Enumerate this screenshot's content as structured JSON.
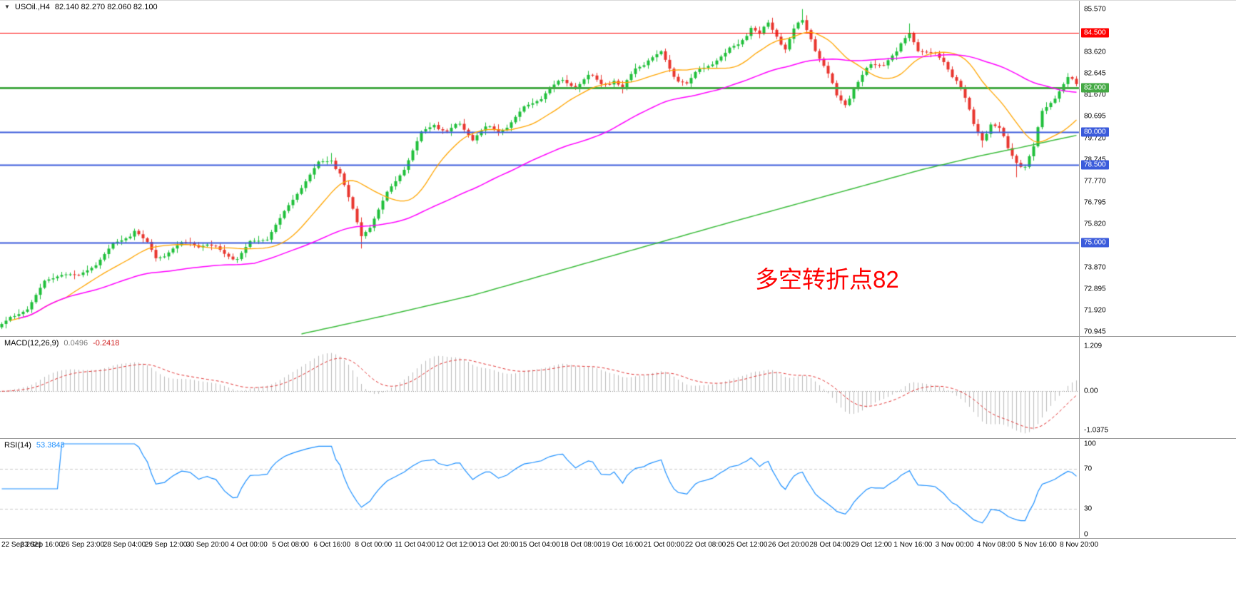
{
  "window": {
    "bg": "#ffffff"
  },
  "colors": {
    "up": "#1fbf3a",
    "down": "#e8352e",
    "ma_fast": "#ffa500",
    "ma_mid": "#ff00ff",
    "ma_slow": "#3cbc3c",
    "hist": "#bbbbbb",
    "macd_signal": "#e03030",
    "rsi_line": "#1E90FF",
    "level_dash": "#c8c8c8"
  },
  "main_chart": {
    "dropdown_icon": "▼",
    "title": "USOil.,H4",
    "ohlc": "82.140 82.270 82.060 82.100",
    "annotation": "多空转折点82",
    "price_axis": {
      "ticks": [
        "85.570",
        "83.620",
        "82.645",
        "81.670",
        "80.695",
        "79.720",
        "78.745",
        "77.770",
        "76.795",
        "75.820",
        "74.845",
        "73.870",
        "72.895",
        "71.920",
        "70.945"
      ]
    },
    "hlines": [
      {
        "price": 84.5,
        "label": "84.500",
        "color": "#ff0000",
        "width": 1
      },
      {
        "price": 82.0,
        "label": "82.000",
        "color": "#44a944",
        "width": 3
      },
      {
        "price": 80.0,
        "label": "80.000",
        "color": "#3b5bdb",
        "width": 2
      },
      {
        "price": 78.5,
        "label": "78.500",
        "color": "#3b5bdb",
        "width": 2
      },
      {
        "price": 75.0,
        "label": "75.000",
        "color": "#3b5bdb",
        "width": 2
      }
    ]
  },
  "macd": {
    "label": "MACD(12,26,9)",
    "value_main": "0.0496",
    "value_signal": "-0.2418",
    "axis_ticks": [
      {
        "v": 1.209,
        "t": "1.209"
      },
      {
        "v": 0,
        "t": "0.00"
      },
      {
        "v": -1.0375,
        "t": "-1.0375"
      }
    ]
  },
  "rsi": {
    "label": "RSI(14)",
    "value": "53.3843",
    "axis_ticks": [
      {
        "v": 100,
        "t": "100"
      },
      {
        "v": 70,
        "t": "70"
      },
      {
        "v": 30,
        "t": "30"
      },
      {
        "v": 0,
        "t": "0"
      }
    ]
  },
  "time_axis": {
    "labels": [
      "22 Sep 2021",
      "23 Sep 16:00",
      "26 Sep 23:00",
      "28 Sep 04:00",
      "29 Sep 12:00",
      "30 Sep 20:00",
      "4 Oct 00:00",
      "5 Oct 08:00",
      "6 Oct 16:00",
      "8 Oct 00:00",
      "11 Oct 04:00",
      "12 Oct 12:00",
      "13 Oct 20:00",
      "15 Oct 04:00",
      "18 Oct 08:00",
      "19 Oct 16:00",
      "21 Oct 00:00",
      "22 Oct 08:00",
      "25 Oct 12:00",
      "26 Oct 20:00",
      "28 Oct 04:00",
      "29 Oct 12:00",
      "1 Nov 16:00",
      "3 Nov 00:00",
      "4 Nov 08:00",
      "5 Nov 16:00",
      "8 Nov 20:00"
    ]
  },
  "chart_data": {
    "type": "candlestick",
    "instrument": "USOil",
    "timeframe": "H4",
    "price_range": {
      "min": 70.75,
      "max": 85.95
    },
    "candles": {
      "count": 252,
      "close_waypoints": [
        [
          0,
          71.3
        ],
        [
          3,
          71.6
        ],
        [
          6,
          72.1
        ],
        [
          10,
          73.1
        ],
        [
          14,
          73.7
        ],
        [
          18,
          73.4
        ],
        [
          22,
          74.1
        ],
        [
          26,
          74.8
        ],
        [
          31,
          75.6
        ],
        [
          34,
          74.9
        ],
        [
          36,
          74.3
        ],
        [
          40,
          74.7
        ],
        [
          44,
          75.0
        ],
        [
          48,
          74.9
        ],
        [
          52,
          74.5
        ],
        [
          55,
          74.3
        ],
        [
          58,
          74.9
        ],
        [
          62,
          75.3
        ],
        [
          66,
          76.3
        ],
        [
          70,
          77.6
        ],
        [
          74,
          78.5
        ],
        [
          77,
          78.8
        ],
        [
          79,
          78.2
        ],
        [
          82,
          76.4
        ],
        [
          84,
          75.3
        ],
        [
          86,
          75.8
        ],
        [
          89,
          76.8
        ],
        [
          92,
          77.8
        ],
        [
          95,
          78.8
        ],
        [
          98,
          79.9
        ],
        [
          101,
          80.4
        ],
        [
          104,
          80.0
        ],
        [
          107,
          80.3
        ],
        [
          110,
          79.8
        ],
        [
          113,
          80.2
        ],
        [
          116,
          80.0
        ],
        [
          119,
          80.5
        ],
        [
          122,
          81.0
        ],
        [
          125,
          81.5
        ],
        [
          128,
          82.0
        ],
        [
          131,
          82.3
        ],
        [
          134,
          82.1
        ],
        [
          137,
          82.5
        ],
        [
          140,
          82.2
        ],
        [
          143,
          82.4
        ],
        [
          145,
          81.9
        ],
        [
          148,
          82.9
        ],
        [
          151,
          83.3
        ],
        [
          154,
          83.5
        ],
        [
          157,
          82.6
        ],
        [
          160,
          82.2
        ],
        [
          163,
          82.8
        ],
        [
          166,
          83.2
        ],
        [
          169,
          83.5
        ],
        [
          172,
          84.0
        ],
        [
          175,
          84.8
        ],
        [
          177,
          84.4
        ],
        [
          179,
          84.9
        ],
        [
          181,
          84.4
        ],
        [
          183,
          83.8
        ],
        [
          185,
          84.6
        ],
        [
          187,
          85.0
        ],
        [
          189,
          84.3
        ],
        [
          191,
          83.4
        ],
        [
          193,
          82.6
        ],
        [
          195,
          81.6
        ],
        [
          197,
          81.3
        ],
        [
          199,
          82.0
        ],
        [
          201,
          82.5
        ],
        [
          203,
          83.0
        ],
        [
          206,
          83.2
        ],
        [
          209,
          83.6
        ],
        [
          212,
          84.5
        ],
        [
          214,
          83.8
        ],
        [
          217,
          83.5
        ],
        [
          220,
          83.2
        ],
        [
          223,
          82.4
        ],
        [
          225,
          81.5
        ],
        [
          227,
          80.3
        ],
        [
          229,
          79.7
        ],
        [
          231,
          80.4
        ],
        [
          233,
          80.1
        ],
        [
          235,
          79.2
        ],
        [
          237,
          78.7
        ],
        [
          239,
          78.5
        ],
        [
          241,
          79.3
        ],
        [
          243,
          80.9
        ],
        [
          245,
          81.4
        ],
        [
          247,
          81.9
        ],
        [
          249,
          82.4
        ],
        [
          251,
          82.1
        ]
      ],
      "noise": [
        0.0,
        0.05,
        0.12,
        0.06,
        -0.02,
        -0.08,
        -0.14,
        -0.06,
        0.02,
        0.09,
        0.16,
        0.07,
        -0.03,
        -0.1,
        -0.18,
        -0.08
      ],
      "wick_high": [
        0.08,
        0.18,
        0.05,
        0.12,
        0.22,
        0.07,
        0.14,
        0.1
      ],
      "wick_low": [
        0.12,
        0.05,
        0.16,
        0.08,
        0.2,
        0.06,
        0.1,
        0.15
      ],
      "overrides": [
        {
          "i": 187,
          "h": 85.57
        },
        {
          "i": 77,
          "h": 79.05
        },
        {
          "i": 84,
          "l": 74.72
        },
        {
          "i": 212,
          "h": 84.92
        },
        {
          "i": 237,
          "l": 77.95
        },
        {
          "i": 229,
          "l": 79.3
        }
      ],
      "last_ohlc": {
        "open": 82.14,
        "high": 82.27,
        "low": 82.06,
        "close": 82.1
      }
    },
    "moving_averages": {
      "fast_period": 16,
      "mid_period": 60,
      "slow_waypoints": [
        [
          70,
          70.85
        ],
        [
          90,
          71.7
        ],
        [
          110,
          72.6
        ],
        [
          130,
          73.7
        ],
        [
          150,
          74.8
        ],
        [
          170,
          75.9
        ],
        [
          185,
          76.7
        ],
        [
          200,
          77.5
        ],
        [
          215,
          78.3
        ],
        [
          228,
          78.9
        ],
        [
          238,
          79.3
        ],
        [
          245,
          79.6
        ],
        [
          251,
          79.85
        ]
      ]
    },
    "macd": {
      "fast": 12,
      "slow": 26,
      "signal": 9,
      "range": {
        "min": -1.25,
        "max": 1.45
      }
    },
    "rsi": {
      "period": 14,
      "levels": [
        70,
        30
      ]
    }
  }
}
